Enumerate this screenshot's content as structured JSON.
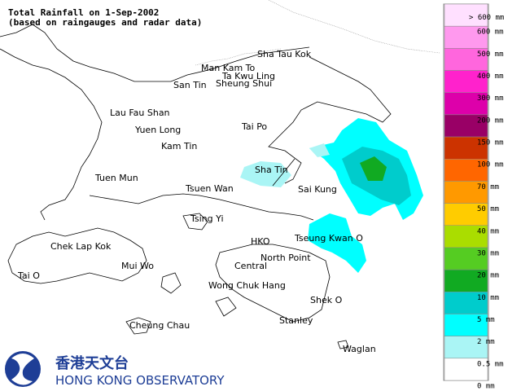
{
  "header": {
    "title": "Total Rainfall on 1-Sep-2002",
    "subtitle": "(based on raingauges and radar data)"
  },
  "places": [
    "Sha Tau Kok",
    "Man Kam To",
    "Ta Kwu Ling",
    "San Tin",
    "Sheung Shui",
    "Lau Fau Shan",
    "Yuen Long",
    "Tai Po",
    "Kam Tin",
    "Sha Tin",
    "Tuen Mun",
    "Tsuen Wan",
    "Sai Kung",
    "Tsing Yi",
    "HKO",
    "Tseung Kwan O",
    "Chek Lap Kok",
    "Mui Wo",
    "North Point",
    "Central",
    "Tai O",
    "Wong Chuk Hang",
    "Shek O",
    "Cheung Chau",
    "Stanley",
    "Waglan"
  ],
  "legend": {
    "labels": [
      "> 600 mm",
      "600 mm",
      "500 mm",
      "400 mm",
      "300 mm",
      "200 mm",
      "150 mm",
      "100 mm",
      "70 mm",
      "50 mm",
      "40 mm",
      "30 mm",
      "20 mm",
      "10 mm",
      "5 mm",
      "2 mm",
      "0.5 mm",
      "0 mm"
    ],
    "colors": [
      "#ffe0ff",
      "#ff99ee",
      "#ff66dd",
      "#ff22cc",
      "#dd00aa",
      "#990066",
      "#cc3300",
      "#ff6600",
      "#ff9900",
      "#ffcc00",
      "#aadd00",
      "#55cc22",
      "#11aa22",
      "#00cccc",
      "#00ffff",
      "#aaf5f5",
      "#ffffff"
    ]
  },
  "logo": {
    "chinese": "香港天文台",
    "english": "HONG KONG OBSERVATORY"
  }
}
